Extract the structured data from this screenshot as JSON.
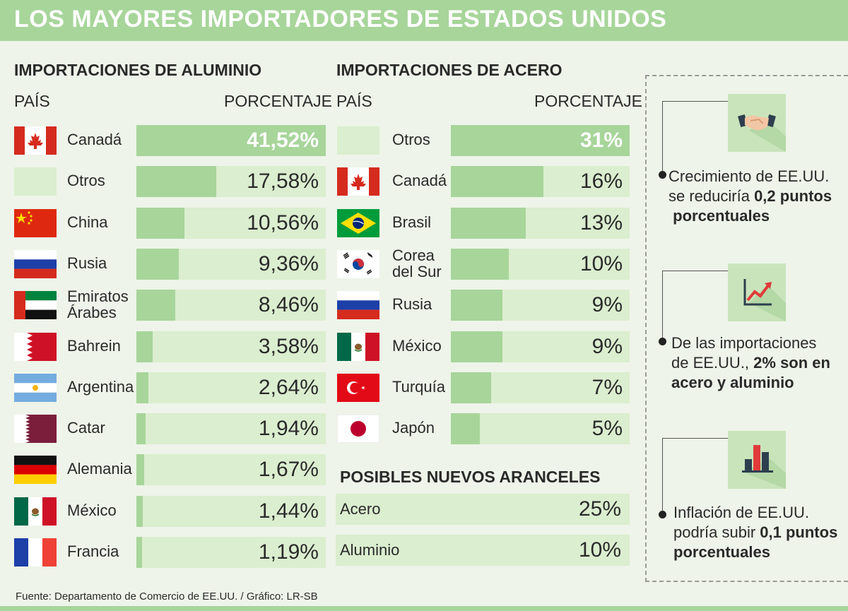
{
  "title": "LOS MAYORES IMPORTADORES DE ESTADOS UNIDOS",
  "source": "Fuente:  Departamento de Comercio de EE.UU. / Gráfico: LR-SB",
  "colors": {
    "banner": "#a7d59a",
    "bar_fill": "#a7d59a",
    "bar_track": "#dbeecf",
    "background": "#eef4e9"
  },
  "chart_data": [
    {
      "type": "bar",
      "title": "IMPORTACIONES DE ALUMINIO",
      "col_country": "PAÍS",
      "col_value": "PORCENTAJE",
      "xlim": [
        0,
        41.52
      ],
      "rows": [
        {
          "flag": "canada-flag",
          "country": "Canadá",
          "value": 41.52,
          "label": "41,52%"
        },
        {
          "flag": "otros-placeholder",
          "country": "Otros",
          "value": 17.58,
          "label": "17,58%"
        },
        {
          "flag": "china-flag",
          "country": "China",
          "value": 10.56,
          "label": "10,56%"
        },
        {
          "flag": "russia-flag",
          "country": "Rusia",
          "value": 9.36,
          "label": "9,36%"
        },
        {
          "flag": "uae-flag",
          "country": "Emiratos\nÁrabes",
          "value": 8.46,
          "label": "8,46%"
        },
        {
          "flag": "bahrain-flag",
          "country": "Bahrein",
          "value": 3.58,
          "label": "3,58%"
        },
        {
          "flag": "argentina-flag",
          "country": "Argentina",
          "value": 2.64,
          "label": "2,64%"
        },
        {
          "flag": "qatar-flag",
          "country": "Catar",
          "value": 1.94,
          "label": "1,94%"
        },
        {
          "flag": "germany-flag",
          "country": "Alemania",
          "value": 1.67,
          "label": "1,67%"
        },
        {
          "flag": "mexico-flag",
          "country": "México",
          "value": 1.44,
          "label": "1,44%"
        },
        {
          "flag": "france-flag",
          "country": "Francia",
          "value": 1.19,
          "label": "1,19%"
        }
      ]
    },
    {
      "type": "bar",
      "title": "IMPORTACIONES DE ACERO",
      "col_country": "PAÍS",
      "col_value": "PORCENTAJE",
      "xlim": [
        0,
        31
      ],
      "rows": [
        {
          "flag": "otros-placeholder",
          "country": "Otros",
          "value": 31,
          "label": "31%"
        },
        {
          "flag": "canada-flag",
          "country": "Canadá",
          "value": 16,
          "label": "16%"
        },
        {
          "flag": "brazil-flag",
          "country": "Brasil",
          "value": 13,
          "label": "13%"
        },
        {
          "flag": "south-korea-flag",
          "country": "Corea\ndel Sur",
          "value": 10,
          "label": "10%"
        },
        {
          "flag": "russia-flag",
          "country": "Rusia",
          "value": 9,
          "label": "9%"
        },
        {
          "flag": "mexico-flag",
          "country": "México",
          "value": 9,
          "label": "9%"
        },
        {
          "flag": "turkey-flag",
          "country": "Turquía",
          "value": 7,
          "label": "7%"
        },
        {
          "flag": "japan-flag",
          "country": "Japón",
          "value": 5,
          "label": "5%"
        }
      ]
    }
  ],
  "tariffs": {
    "title": "POSIBLES NUEVOS ARANCELES",
    "rows": [
      {
        "label": "Acero",
        "value": "25%"
      },
      {
        "label": "Aluminio",
        "value": "10%"
      }
    ]
  },
  "sidebar": [
    {
      "icon": "handshake-icon",
      "text": [
        "Crecimiento de EE.UU.",
        "se reduciría ",
        "0,2 puntos",
        "porcentuales"
      ],
      "bold": [
        false,
        false,
        true,
        true
      ]
    },
    {
      "icon": "growth-chart-icon",
      "text": [
        "De las importaciones",
        "de EE.UU., ",
        "2% son en",
        "acero y aluminio"
      ],
      "bold": [
        false,
        false,
        true,
        true
      ]
    },
    {
      "icon": "bar-chart-icon",
      "text": [
        "Inflación de EE.UU.",
        "podría subir ",
        "0,1 puntos",
        "porcentuales"
      ],
      "bold": [
        false,
        false,
        true,
        true
      ]
    }
  ]
}
